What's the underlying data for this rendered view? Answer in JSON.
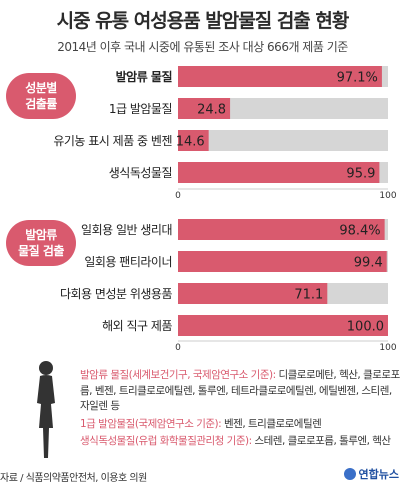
{
  "header": {
    "title": "시중 유통 여성용품 발암물질 검출 현황",
    "subtitle": "2014년 이후 국내 시중에 유통된 조사 대상 666개 제품 기준"
  },
  "sections": [
    {
      "label": "성분별\n검출률"
    },
    {
      "label": "발암류\n물질 검출"
    }
  ],
  "colors": {
    "bar": "#d95a6e",
    "track": "#d6d6d6",
    "accent": "#d95a6e"
  },
  "chart_data": [
    {
      "type": "bar",
      "orientation": "horizontal",
      "categories": [
        "발암류 물질",
        "1급 발암물질",
        "유기농 표시 제품 중 벤젠",
        "생식독성물질"
      ],
      "values": [
        97.1,
        24.8,
        14.6,
        95.9
      ],
      "value_labels": [
        "97.1%",
        "24.8",
        "14.6",
        "95.9"
      ],
      "bold_categories": [
        true,
        false,
        false,
        false
      ],
      "xlim": [
        0,
        100
      ],
      "ticks": [
        "0",
        "100"
      ]
    },
    {
      "type": "bar",
      "orientation": "horizontal",
      "categories": [
        "일회용 일반 생리대",
        "일회용 팬티라이너",
        "다회용 면성분 위생용품",
        "해외 직구 제품"
      ],
      "values": [
        98.4,
        99.4,
        71.1,
        100.0
      ],
      "value_labels": [
        "98.4%",
        "99.4",
        "71.1",
        "100.0"
      ],
      "bold_categories": [
        false,
        false,
        false,
        false
      ],
      "xlim": [
        0,
        100
      ],
      "ticks": [
        "0",
        "100"
      ]
    }
  ],
  "legend": {
    "item1_head": "발암류 물질(세계보건기구, 국제암연구소 기준):",
    "item1_body": "디클로로메탄, 헥산, 클로로포름, 벤젠, 트리클로로에틸렌, 톨루엔, 테트라클로로에틸렌, 에틸벤젠, 스티렌, 자일렌 등",
    "item2_head": "1급 발암물질(국제암연구소 기준):",
    "item2_body": "벤젠, 트리클로로에틸렌",
    "item3_head": "생식독성물질(유럽 화학물질관리청 기준):",
    "item3_body": "스테렌, 클로로포름, 톨루엔, 헥산"
  },
  "footer": {
    "source": "자료 / 식품의약품안전처, 이용호 의원",
    "logo": "연합뉴스",
    "logo_icon": "yonhap-logo-icon"
  }
}
